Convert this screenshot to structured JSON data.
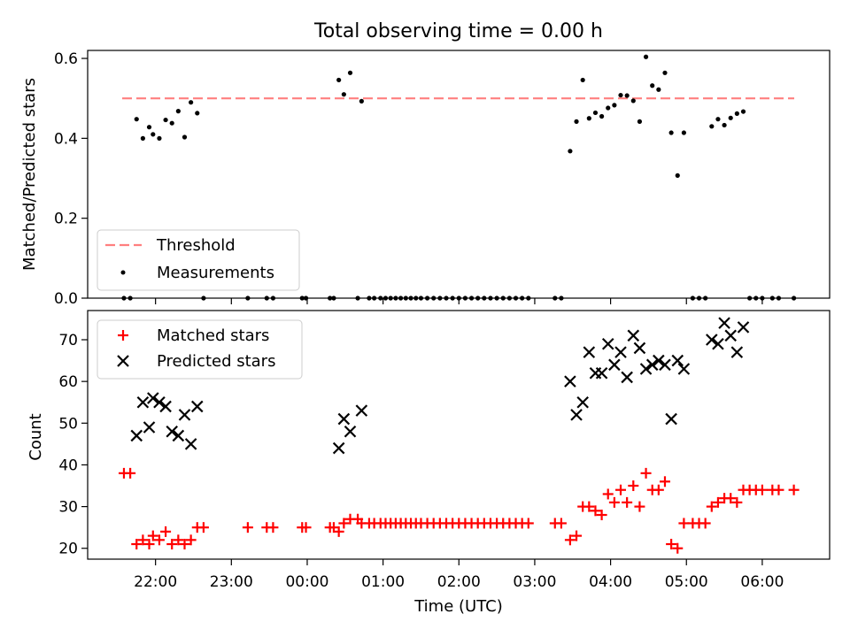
{
  "title": "Total observing time = 0.00 h",
  "chart_data": [
    {
      "type": "scatter",
      "panel": "top",
      "ylabel": "Matched/Predicted stars",
      "ylim": [
        0,
        0.62
      ],
      "yticks": [
        "0.0",
        "0.2",
        "0.4",
        "0.6"
      ],
      "threshold": 0.5,
      "threshold_color": "#ff7f7f",
      "legend": {
        "placement": "lower-left",
        "entries": [
          "Threshold",
          "Measurements"
        ]
      },
      "series": [
        {
          "name": "Measurements",
          "color": "#000000",
          "points": [
            [
              "21:35",
              0.0
            ],
            [
              "21:40",
              0.0
            ],
            [
              "21:45",
              0.448
            ],
            [
              "21:50",
              0.4
            ],
            [
              "21:55",
              0.428
            ],
            [
              "21:58",
              0.41
            ],
            [
              "22:03",
              0.4
            ],
            [
              "22:08",
              0.446
            ],
            [
              "22:13",
              0.438
            ],
            [
              "22:18",
              0.468
            ],
            [
              "22:23",
              0.403
            ],
            [
              "22:28",
              0.49
            ],
            [
              "22:33",
              0.463
            ],
            [
              "22:38",
              0.0
            ],
            [
              "23:13",
              0.0
            ],
            [
              "23:28",
              0.0
            ],
            [
              "23:33",
              0.0
            ],
            [
              "23:56",
              0.0
            ],
            [
              "23:59",
              0.0
            ],
            [
              "00:18",
              0.0
            ],
            [
              "00:21",
              0.0
            ],
            [
              "00:25",
              0.546
            ],
            [
              "00:29",
              0.51
            ],
            [
              "00:34",
              0.564
            ],
            [
              "00:40",
              0.0
            ],
            [
              "00:43",
              0.493
            ],
            [
              "00:49",
              0.0
            ],
            [
              "00:53",
              0.0
            ],
            [
              "00:58",
              0.0
            ],
            [
              "01:02",
              0.0
            ],
            [
              "01:06",
              0.0
            ],
            [
              "01:10",
              0.0
            ],
            [
              "01:14",
              0.0
            ],
            [
              "01:18",
              0.0
            ],
            [
              "01:22",
              0.0
            ],
            [
              "01:26",
              0.0
            ],
            [
              "01:30",
              0.0
            ],
            [
              "01:35",
              0.0
            ],
            [
              "01:40",
              0.0
            ],
            [
              "01:45",
              0.0
            ],
            [
              "01:50",
              0.0
            ],
            [
              "01:55",
              0.0
            ],
            [
              "02:00",
              0.0
            ],
            [
              "02:05",
              0.0
            ],
            [
              "02:10",
              0.0
            ],
            [
              "02:15",
              0.0
            ],
            [
              "02:20",
              0.0
            ],
            [
              "02:25",
              0.0
            ],
            [
              "02:30",
              0.0
            ],
            [
              "02:35",
              0.0
            ],
            [
              "02:40",
              0.0
            ],
            [
              "02:45",
              0.0
            ],
            [
              "02:50",
              0.0
            ],
            [
              "02:55",
              0.0
            ],
            [
              "03:16",
              0.0
            ],
            [
              "03:21",
              0.0
            ],
            [
              "03:28",
              0.368
            ],
            [
              "03:33",
              0.442
            ],
            [
              "03:38",
              0.546
            ],
            [
              "03:43",
              0.45
            ],
            [
              "03:48",
              0.464
            ],
            [
              "03:53",
              0.455
            ],
            [
              "03:58",
              0.476
            ],
            [
              "04:03",
              0.483
            ],
            [
              "04:08",
              0.508
            ],
            [
              "04:13",
              0.507
            ],
            [
              "04:18",
              0.494
            ],
            [
              "04:23",
              0.442
            ],
            [
              "04:28",
              0.604
            ],
            [
              "04:33",
              0.532
            ],
            [
              "04:38",
              0.522
            ],
            [
              "04:43",
              0.564
            ],
            [
              "04:48",
              0.414
            ],
            [
              "04:53",
              0.307
            ],
            [
              "04:58",
              0.414
            ],
            [
              "05:05",
              0.0
            ],
            [
              "05:10",
              0.0
            ],
            [
              "05:15",
              0.0
            ],
            [
              "05:20",
              0.43
            ],
            [
              "05:25",
              0.448
            ],
            [
              "05:30",
              0.433
            ],
            [
              "05:35",
              0.451
            ],
            [
              "05:40",
              0.462
            ],
            [
              "05:45",
              0.467
            ],
            [
              "05:50",
              0.0
            ],
            [
              "05:55",
              0.0
            ],
            [
              "06:00",
              0.0
            ],
            [
              "06:08",
              0.0
            ],
            [
              "06:13",
              0.0
            ],
            [
              "06:25",
              0.0
            ]
          ]
        }
      ]
    },
    {
      "type": "scatter",
      "panel": "bottom",
      "xlabel": "Time (UTC)",
      "ylabel": "Count",
      "ylim": [
        17.4,
        77
      ],
      "yticks": [
        "20",
        "30",
        "40",
        "50",
        "60",
        "70"
      ],
      "xticks": [
        "22:00",
        "23:00",
        "00:00",
        "01:00",
        "02:00",
        "03:00",
        "04:00",
        "05:00",
        "06:00"
      ],
      "legend": {
        "placement": "upper-left",
        "entries": [
          "Matched stars",
          "Predicted stars"
        ]
      },
      "series": [
        {
          "name": "Matched stars",
          "marker": "plus",
          "color": "#ff0000",
          "points": [
            [
              "21:35",
              38
            ],
            [
              "21:40",
              38
            ],
            [
              "21:45",
              21
            ],
            [
              "21:50",
              22
            ],
            [
              "21:55",
              21
            ],
            [
              "21:58",
              23
            ],
            [
              "22:03",
              22
            ],
            [
              "22:08",
              24
            ],
            [
              "22:13",
              21
            ],
            [
              "22:18",
              22
            ],
            [
              "22:23",
              21
            ],
            [
              "22:28",
              22
            ],
            [
              "22:33",
              25
            ],
            [
              "22:38",
              25
            ],
            [
              "23:13",
              25
            ],
            [
              "23:28",
              25
            ],
            [
              "23:33",
              25
            ],
            [
              "23:56",
              25
            ],
            [
              "23:59",
              25
            ],
            [
              "00:18",
              25
            ],
            [
              "00:21",
              25
            ],
            [
              "00:25",
              24
            ],
            [
              "00:29",
              26
            ],
            [
              "00:34",
              27
            ],
            [
              "00:40",
              27
            ],
            [
              "00:43",
              26
            ],
            [
              "00:49",
              26
            ],
            [
              "00:53",
              26
            ],
            [
              "00:58",
              26
            ],
            [
              "01:02",
              26
            ],
            [
              "01:06",
              26
            ],
            [
              "01:10",
              26
            ],
            [
              "01:14",
              26
            ],
            [
              "01:18",
              26
            ],
            [
              "01:22",
              26
            ],
            [
              "01:26",
              26
            ],
            [
              "01:30",
              26
            ],
            [
              "01:35",
              26
            ],
            [
              "01:40",
              26
            ],
            [
              "01:45",
              26
            ],
            [
              "01:50",
              26
            ],
            [
              "01:55",
              26
            ],
            [
              "02:00",
              26
            ],
            [
              "02:05",
              26
            ],
            [
              "02:10",
              26
            ],
            [
              "02:15",
              26
            ],
            [
              "02:20",
              26
            ],
            [
              "02:25",
              26
            ],
            [
              "02:30",
              26
            ],
            [
              "02:35",
              26
            ],
            [
              "02:40",
              26
            ],
            [
              "02:45",
              26
            ],
            [
              "02:50",
              26
            ],
            [
              "02:55",
              26
            ],
            [
              "03:16",
              26
            ],
            [
              "03:21",
              26
            ],
            [
              "03:28",
              22
            ],
            [
              "03:33",
              23
            ],
            [
              "03:38",
              30
            ],
            [
              "03:43",
              30
            ],
            [
              "03:48",
              29
            ],
            [
              "03:53",
              28
            ],
            [
              "03:58",
              33
            ],
            [
              "04:03",
              31
            ],
            [
              "04:08",
              34
            ],
            [
              "04:13",
              31
            ],
            [
              "04:18",
              35
            ],
            [
              "04:23",
              30
            ],
            [
              "04:28",
              38
            ],
            [
              "04:33",
              34
            ],
            [
              "04:38",
              34
            ],
            [
              "04:43",
              36
            ],
            [
              "04:48",
              21
            ],
            [
              "04:53",
              20
            ],
            [
              "04:58",
              26
            ],
            [
              "05:05",
              26
            ],
            [
              "05:10",
              26
            ],
            [
              "05:15",
              26
            ],
            [
              "05:20",
              30
            ],
            [
              "05:25",
              31
            ],
            [
              "05:30",
              32
            ],
            [
              "05:35",
              32
            ],
            [
              "05:40",
              31
            ],
            [
              "05:45",
              34
            ],
            [
              "05:50",
              34
            ],
            [
              "05:55",
              34
            ],
            [
              "06:00",
              34
            ],
            [
              "06:08",
              34
            ],
            [
              "06:13",
              34
            ],
            [
              "06:25",
              34
            ]
          ]
        },
        {
          "name": "Predicted stars",
          "marker": "x",
          "color": "#000000",
          "points": [
            [
              "21:45",
              47
            ],
            [
              "21:50",
              55
            ],
            [
              "21:55",
              49
            ],
            [
              "21:58",
              56
            ],
            [
              "22:03",
              55
            ],
            [
              "22:08",
              54
            ],
            [
              "22:13",
              48
            ],
            [
              "22:18",
              47
            ],
            [
              "22:23",
              52
            ],
            [
              "22:28",
              45
            ],
            [
              "22:33",
              54
            ],
            [
              "00:25",
              44
            ],
            [
              "00:29",
              51
            ],
            [
              "00:34",
              48
            ],
            [
              "00:43",
              53
            ],
            [
              "03:28",
              60
            ],
            [
              "03:33",
              52
            ],
            [
              "03:38",
              55
            ],
            [
              "03:43",
              67
            ],
            [
              "03:48",
              62
            ],
            [
              "03:53",
              62
            ],
            [
              "03:58",
              69
            ],
            [
              "04:03",
              64
            ],
            [
              "04:08",
              67
            ],
            [
              "04:13",
              61
            ],
            [
              "04:18",
              71
            ],
            [
              "04:23",
              68
            ],
            [
              "04:28",
              63
            ],
            [
              "04:33",
              64
            ],
            [
              "04:38",
              65
            ],
            [
              "04:43",
              64
            ],
            [
              "04:48",
              51
            ],
            [
              "04:53",
              65
            ],
            [
              "04:58",
              63
            ],
            [
              "05:20",
              70
            ],
            [
              "05:25",
              69
            ],
            [
              "05:30",
              74
            ],
            [
              "05:35",
              71
            ],
            [
              "05:40",
              67
            ],
            [
              "05:45",
              73
            ]
          ]
        }
      ]
    }
  ]
}
